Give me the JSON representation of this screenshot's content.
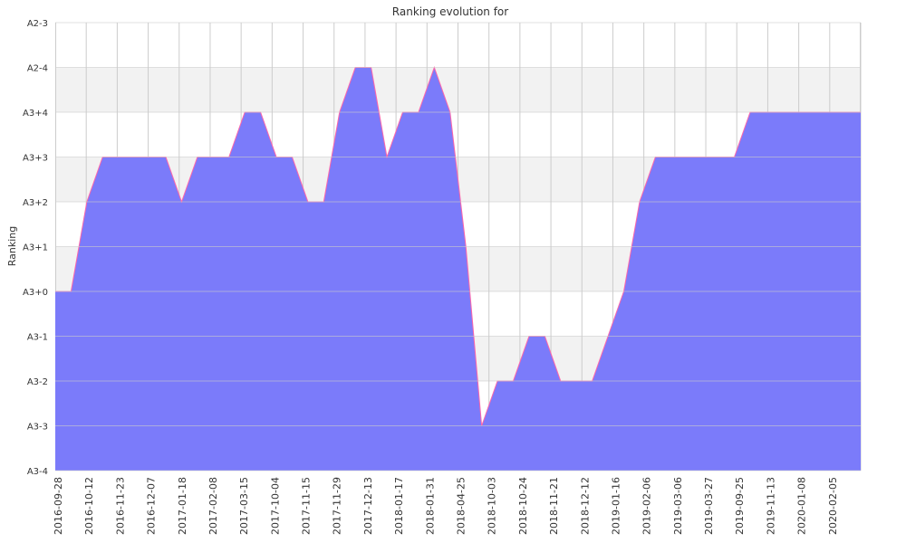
{
  "chart_data": {
    "type": "area",
    "title": "Ranking evolution for",
    "xlabel": "",
    "ylabel": "Ranking",
    "y_tick_labels": [
      "A3-4",
      "A3-3",
      "A3-2",
      "A3-1",
      "A3+0",
      "A3+1",
      "A3+2",
      "A3+3",
      "A3+4",
      "A2-4",
      "A2-3"
    ],
    "x_tick_labels": [
      "2016-09-28",
      "2016-10-12",
      "2016-11-23",
      "2016-12-07",
      "2017-01-18",
      "2017-02-08",
      "2017-03-15",
      "2017-10-04",
      "2017-11-15",
      "2017-11-29",
      "2017-12-13",
      "2018-01-17",
      "2018-01-31",
      "2018-04-25",
      "2018-10-03",
      "2018-10-24",
      "2018-11-21",
      "2018-12-12",
      "2019-01-16",
      "2019-02-06",
      "2019-03-06",
      "2019-03-27",
      "2019-09-25",
      "2019-11-13",
      "2020-01-08",
      "2020-02-05"
    ],
    "series": [
      {
        "values": [
          "A3+0",
          "A3+0",
          "A3+2",
          "A3+3",
          "A3+3",
          "A3+3",
          "A3+3",
          "A3+3",
          "A3+2",
          "A3+3",
          "A3+3",
          "A3+3",
          "A3+4",
          "A3+4",
          "A3+3",
          "A3+3",
          "A3+2",
          "A3+2",
          "A3+4",
          "A2-4",
          "A2-4",
          "A3+3",
          "A3+4",
          "A3+4",
          "A2-4",
          "A3+4",
          "A3+1",
          "A3-3",
          "A3-2",
          "A3-2",
          "A3-1",
          "A3-1",
          "A3-2",
          "A3-2",
          "A3-2",
          "A3-1",
          "A3+0",
          "A3+2",
          "A3+3",
          "A3+3",
          "A3+3",
          "A3+3",
          "A3+3",
          "A3+3",
          "A3+4",
          "A3+4",
          "A3+4",
          "A3+4",
          "A3+4",
          "A3+4",
          "A3+4",
          "A3+4"
        ]
      }
    ],
    "grid": true,
    "colors": {
      "fill": "#7b7bfa",
      "line": "#ff66aa",
      "band": "#f2f2f2",
      "grid": "#cccccc"
    }
  }
}
